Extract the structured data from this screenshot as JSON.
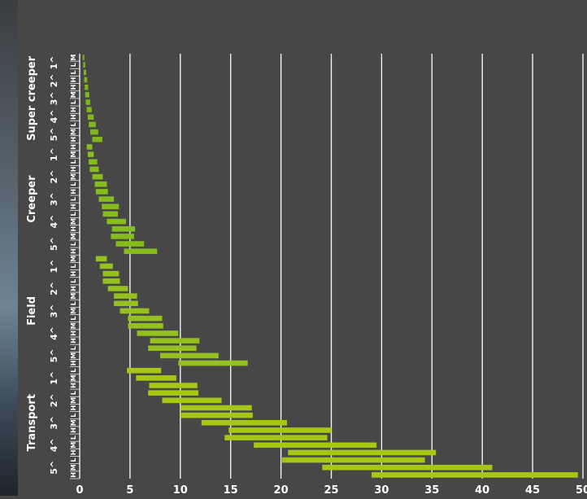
{
  "chart_data": {
    "type": "bar",
    "orientation": "horizontal-range",
    "xlim": [
      0,
      50
    ],
    "x_ticks": [
      "0",
      "5",
      "10",
      "15",
      "20",
      "25",
      "30",
      "35",
      "40",
      "45",
      "50"
    ],
    "grid": "vertical",
    "colors": {
      "super_creeper": "#7fb51d",
      "creeper": "#87bc1e",
      "field": "#94c11f",
      "transport": "#a6c814",
      "background": "#474747",
      "grid": "#ffffff"
    },
    "groups": [
      {
        "name": "Super creeper",
        "gears": [
          "1^",
          "2^",
          "3^",
          "4^",
          "5^"
        ],
        "rows": [
          {
            "gear": "1^",
            "range": "M",
            "min": 0.3,
            "max": 0.45
          },
          {
            "gear": "1^",
            "range": "L",
            "min": 0.35,
            "max": 0.55
          },
          {
            "gear": "2^",
            "range": "L",
            "min": 0.4,
            "max": 0.65
          },
          {
            "gear": "2^",
            "range": "H",
            "min": 0.45,
            "max": 0.75
          },
          {
            "gear": "3^",
            "range": "H",
            "min": 0.5,
            "max": 0.85
          },
          {
            "gear": "3^",
            "range": "M",
            "min": 0.55,
            "max": 0.95
          },
          {
            "gear": "4^",
            "range": "L",
            "min": 0.6,
            "max": 1.05
          },
          {
            "gear": "4^",
            "range": "H",
            "min": 0.7,
            "max": 1.2
          },
          {
            "gear": "4^",
            "range": "H",
            "min": 0.8,
            "max": 1.4
          },
          {
            "gear": "5^",
            "range": "L",
            "min": 0.9,
            "max": 1.6
          },
          {
            "gear": "5^",
            "range": "M",
            "min": 1.05,
            "max": 1.85
          },
          {
            "gear": "5^",
            "range": "H",
            "min": 1.25,
            "max": 2.25
          }
        ]
      },
      {
        "name": "Creeper",
        "gears": [
          "1^",
          "2^",
          "3^",
          "4^",
          "5^"
        ],
        "rows": [
          {
            "gear": "1^",
            "range": "H",
            "min": 0.7,
            "max": 1.25
          },
          {
            "gear": "1^",
            "range": "M",
            "min": 0.8,
            "max": 1.4
          },
          {
            "gear": "1^",
            "range": "L",
            "min": 0.9,
            "max": 1.75
          },
          {
            "gear": "2^",
            "range": "H",
            "min": 1.0,
            "max": 1.9
          },
          {
            "gear": "2^",
            "range": "M",
            "min": 1.25,
            "max": 2.3
          },
          {
            "gear": "2^",
            "range": "L",
            "min": 1.5,
            "max": 2.7
          },
          {
            "gear": "3^",
            "range": "H",
            "min": 1.6,
            "max": 2.8
          },
          {
            "gear": "3^",
            "range": "L",
            "min": 1.9,
            "max": 3.4
          },
          {
            "gear": "3^",
            "range": "H",
            "min": 2.2,
            "max": 3.9
          },
          {
            "gear": "4^",
            "range": "L",
            "min": 2.3,
            "max": 3.8
          },
          {
            "gear": "4^",
            "range": "M",
            "min": 2.7,
            "max": 4.6
          },
          {
            "gear": "4^",
            "range": "H",
            "min": 3.2,
            "max": 5.5
          },
          {
            "gear": "5^",
            "range": "M",
            "min": 3.1,
            "max": 5.4
          },
          {
            "gear": "5^",
            "range": "L",
            "min": 3.6,
            "max": 6.4
          },
          {
            "gear": "5^",
            "range": "H",
            "min": 4.4,
            "max": 7.7
          }
        ]
      },
      {
        "name": "Field",
        "gears": [
          "1^",
          "2^",
          "3^",
          "4^",
          "5^"
        ],
        "rows": [
          {
            "gear": "1^",
            "range": "M",
            "min": 1.6,
            "max": 2.7
          },
          {
            "gear": "1^",
            "range": "L",
            "min": 2.0,
            "max": 3.3
          },
          {
            "gear": "2^",
            "range": "H",
            "min": 2.3,
            "max": 3.9
          },
          {
            "gear": "2^",
            "range": "L",
            "min": 2.3,
            "max": 4.0
          },
          {
            "gear": "2^",
            "range": "H",
            "min": 2.8,
            "max": 4.8
          },
          {
            "gear": "3^",
            "range": "M",
            "min": 3.4,
            "max": 5.7
          },
          {
            "gear": "3^",
            "range": "L",
            "min": 3.4,
            "max": 5.8
          },
          {
            "gear": "3^",
            "range": "M",
            "min": 4.0,
            "max": 6.9
          },
          {
            "gear": "4^",
            "range": "L",
            "min": 4.8,
            "max": 8.2
          },
          {
            "gear": "4^",
            "range": "M",
            "min": 4.8,
            "max": 8.3
          },
          {
            "gear": "4^",
            "range": "H",
            "min": 5.7,
            "max": 9.8
          },
          {
            "gear": "5^",
            "range": "H",
            "min": 7.0,
            "max": 11.9
          },
          {
            "gear": "5^",
            "range": "L",
            "min": 6.8,
            "max": 11.6
          },
          {
            "gear": "5^",
            "range": "M",
            "min": 8.0,
            "max": 13.8
          },
          {
            "gear": "5^",
            "range": "H",
            "min": 9.8,
            "max": 16.7
          }
        ]
      },
      {
        "name": "Transport",
        "gears": [
          "1^",
          "2^",
          "3^",
          "4^",
          "5^"
        ],
        "rows": [
          {
            "gear": "1^",
            "range": "L",
            "min": 4.7,
            "max": 8.1
          },
          {
            "gear": "1^",
            "range": "M",
            "min": 5.6,
            "max": 9.6
          },
          {
            "gear": "1^",
            "range": "H",
            "min": 6.9,
            "max": 11.7
          },
          {
            "gear": "2^",
            "range": "L",
            "min": 6.8,
            "max": 11.8
          },
          {
            "gear": "2^",
            "range": "M",
            "min": 8.2,
            "max": 14.1
          },
          {
            "gear": "2^",
            "range": "H",
            "min": 10.0,
            "max": 17.1
          },
          {
            "gear": "3^",
            "range": "L",
            "min": 10.0,
            "max": 17.2
          },
          {
            "gear": "3^",
            "range": "M",
            "min": 12.1,
            "max": 20.6
          },
          {
            "gear": "3^",
            "range": "H",
            "min": 14.8,
            "max": 25.0
          },
          {
            "gear": "4^",
            "range": "L",
            "min": 14.4,
            "max": 24.6
          },
          {
            "gear": "4^",
            "range": "M",
            "min": 17.3,
            "max": 29.5
          },
          {
            "gear": "4^",
            "range": "H",
            "min": 20.7,
            "max": 35.4
          },
          {
            "gear": "5^",
            "range": "L",
            "min": 20.1,
            "max": 34.3
          },
          {
            "gear": "5^",
            "range": "M",
            "min": 24.1,
            "max": 41.0
          },
          {
            "gear": "5^",
            "range": "H",
            "min": 29.0,
            "max": 49.5
          }
        ]
      }
    ]
  }
}
